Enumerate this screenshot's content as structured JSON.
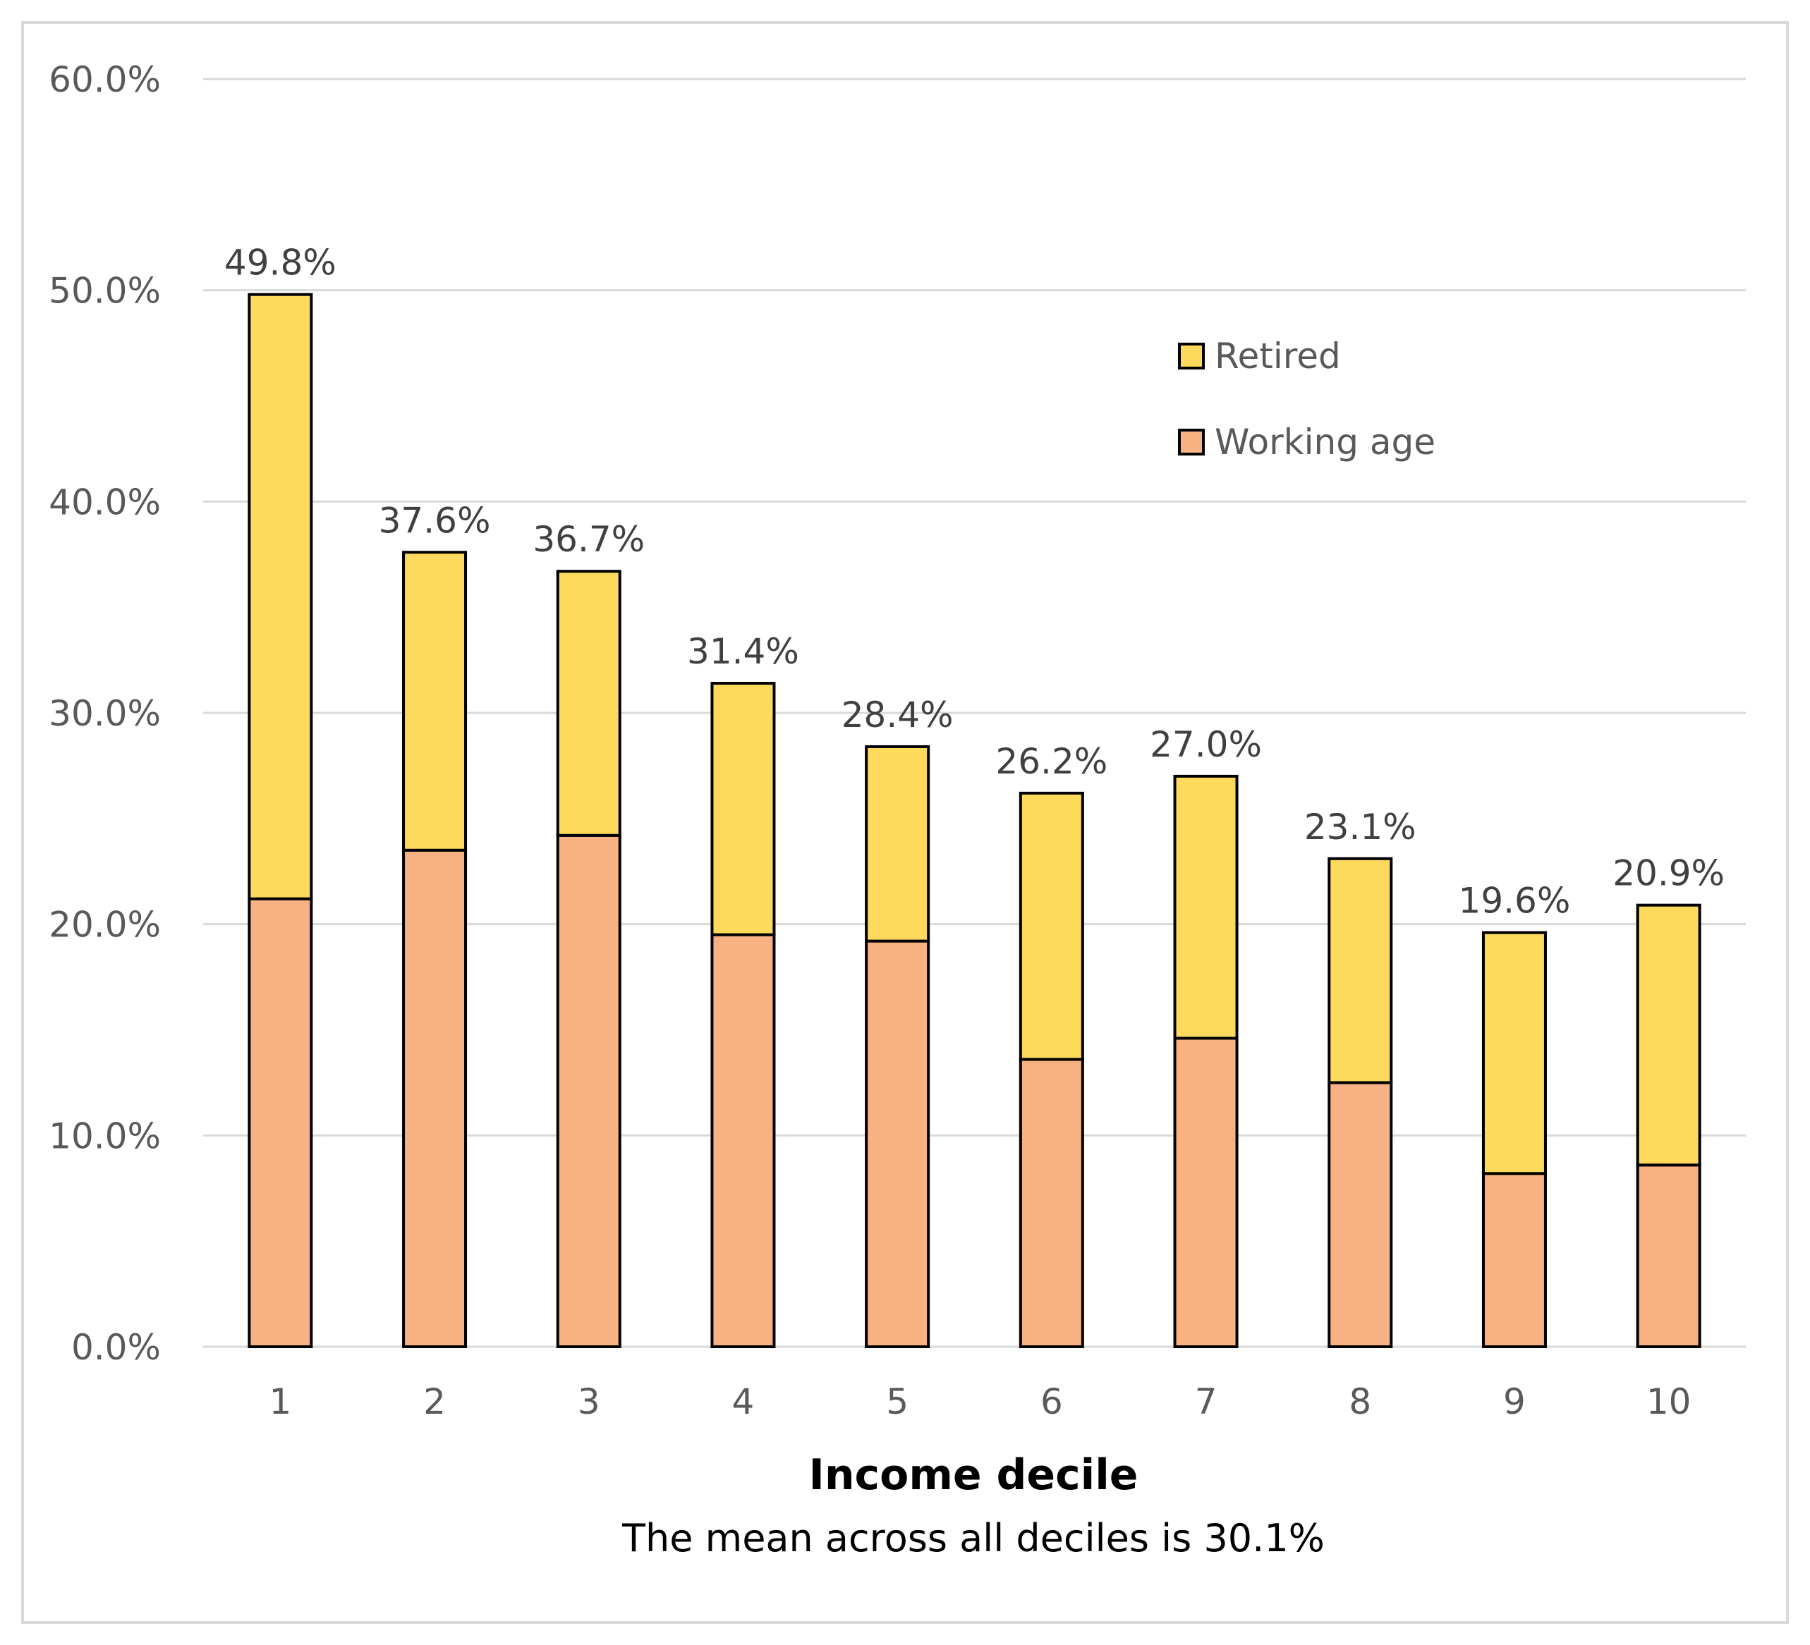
{
  "chart_data": {
    "type": "bar",
    "stacked": true,
    "title": "",
    "xlabel": "Income decile",
    "note": "The mean across all deciles is 30.1%",
    "ylabel": "",
    "ylim": [
      0,
      60
    ],
    "yticks": [
      0,
      10,
      20,
      30,
      40,
      50,
      60
    ],
    "ytick_labels": [
      "0.0%",
      "10.0%",
      "20.0%",
      "30.0%",
      "40.0%",
      "50.0%",
      "60.0%"
    ],
    "grid": true,
    "legend_position": "top-right",
    "categories": [
      "1",
      "2",
      "3",
      "4",
      "5",
      "6",
      "7",
      "8",
      "9",
      "10"
    ],
    "series": [
      {
        "name": "Working age",
        "color": "#F8B183",
        "values": [
          21.2,
          23.5,
          24.2,
          19.5,
          19.2,
          13.6,
          14.6,
          12.5,
          8.2,
          8.6
        ]
      },
      {
        "name": "Retired",
        "color": "#FDD95C",
        "values": [
          28.6,
          14.1,
          12.5,
          11.9,
          9.2,
          12.6,
          12.4,
          10.6,
          11.4,
          12.3
        ]
      }
    ],
    "totals": [
      49.8,
      37.6,
      36.7,
      31.4,
      28.4,
      26.2,
      27.0,
      23.1,
      19.6,
      20.9
    ],
    "total_labels": [
      "49.8%",
      "37.6%",
      "36.7%",
      "31.4%",
      "28.4%",
      "26.2%",
      "27.0%",
      "23.1%",
      "19.6%",
      "20.9%"
    ],
    "legend_order": [
      "Retired",
      "Working age"
    ]
  },
  "colors": {
    "grid": "#d9d9d9",
    "bar_outline": "#000000",
    "frame": "#d9d9d9"
  }
}
